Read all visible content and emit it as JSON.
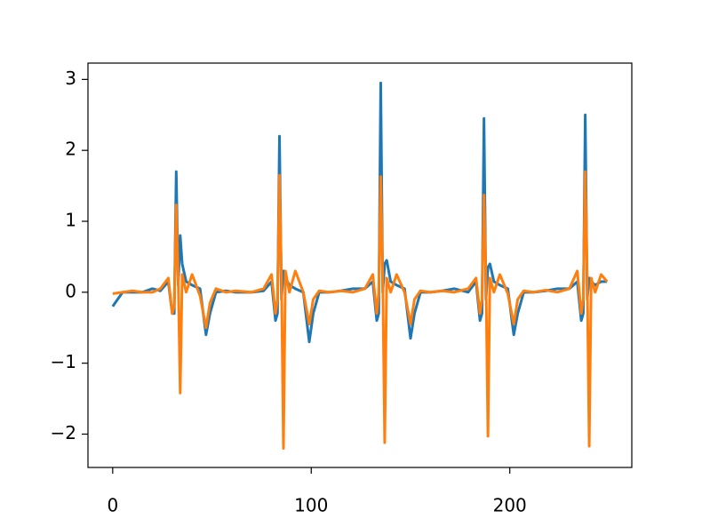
{
  "chart_data": {
    "type": "line",
    "x": [
      0,
      5,
      10,
      15,
      20,
      24,
      28,
      30,
      31,
      32,
      33,
      34,
      35,
      37,
      40,
      44,
      47,
      49,
      52,
      57,
      62,
      70,
      76,
      80,
      82,
      83,
      84,
      85,
      86,
      87,
      89,
      92,
      96,
      99,
      101,
      104,
      109,
      115,
      121,
      127,
      131,
      133,
      134,
      135,
      136,
      137,
      138,
      140,
      143,
      147,
      150,
      152,
      155,
      160,
      166,
      172,
      179,
      183,
      185,
      186,
      187,
      188,
      189,
      190,
      192,
      195,
      199,
      202,
      204,
      207,
      212,
      218,
      224,
      230,
      234,
      236,
      237,
      238,
      239,
      240,
      241,
      243,
      246,
      249
    ],
    "series": [
      {
        "color": "#1f77b4",
        "values": [
          -0.2,
          0.0,
          0.0,
          0.0,
          0.05,
          0.02,
          0.15,
          -0.3,
          -0.3,
          1.7,
          0.1,
          0.8,
          0.4,
          0.15,
          0.1,
          0.05,
          -0.6,
          -0.3,
          0.0,
          0.02,
          0.0,
          0.0,
          0.02,
          0.15,
          -0.4,
          -0.3,
          2.2,
          -0.1,
          0.3,
          0.2,
          0.1,
          0.05,
          0.0,
          -0.7,
          -0.3,
          0.0,
          0.0,
          0.02,
          0.05,
          0.05,
          0.15,
          -0.4,
          -0.3,
          2.95,
          0.0,
          0.4,
          0.45,
          0.15,
          0.1,
          0.05,
          -0.65,
          -0.3,
          0.0,
          0.0,
          0.02,
          0.05,
          0.0,
          0.15,
          -0.4,
          -0.3,
          2.45,
          -0.1,
          0.35,
          0.4,
          0.15,
          0.1,
          0.05,
          -0.6,
          -0.3,
          0.0,
          0.0,
          0.02,
          0.05,
          0.05,
          0.15,
          -0.4,
          -0.3,
          2.5,
          -0.1,
          0.2,
          0.15,
          0.1,
          0.15,
          0.15
        ]
      },
      {
        "color": "#ff7f0e",
        "values": [
          -0.02,
          0.0,
          0.02,
          0.0,
          0.0,
          0.05,
          0.2,
          -0.3,
          -0.2,
          1.23,
          0.2,
          -1.42,
          0.25,
          0.0,
          0.25,
          -0.05,
          -0.5,
          -0.15,
          0.05,
          0.0,
          0.02,
          0.0,
          0.05,
          0.25,
          -0.3,
          -0.1,
          1.65,
          0.2,
          -2.2,
          0.3,
          0.0,
          0.3,
          0.0,
          -0.45,
          -0.1,
          0.02,
          0.0,
          0.02,
          0.0,
          0.05,
          0.25,
          -0.3,
          0.0,
          1.63,
          0.2,
          -2.12,
          0.2,
          0.0,
          0.25,
          0.0,
          -0.45,
          -0.1,
          0.02,
          0.0,
          0.02,
          0.0,
          0.05,
          0.2,
          -0.3,
          -0.1,
          1.37,
          0.2,
          -2.03,
          0.2,
          0.0,
          0.25,
          -0.02,
          -0.45,
          -0.1,
          0.02,
          0.0,
          0.03,
          0.0,
          0.05,
          0.3,
          -0.3,
          -0.1,
          1.7,
          0.2,
          -2.17,
          0.2,
          0.0,
          0.25,
          0.15
        ]
      }
    ],
    "xlim": [
      -12.45,
      261.45
    ],
    "xticks": [
      0,
      100,
      200
    ],
    "ylim": [
      -2.47,
      3.23
    ],
    "yticks": [
      {
        "value": -2,
        "label": "−2"
      },
      {
        "value": -1,
        "label": "−1"
      },
      0,
      1,
      2,
      3
    ],
    "grid": false
  }
}
